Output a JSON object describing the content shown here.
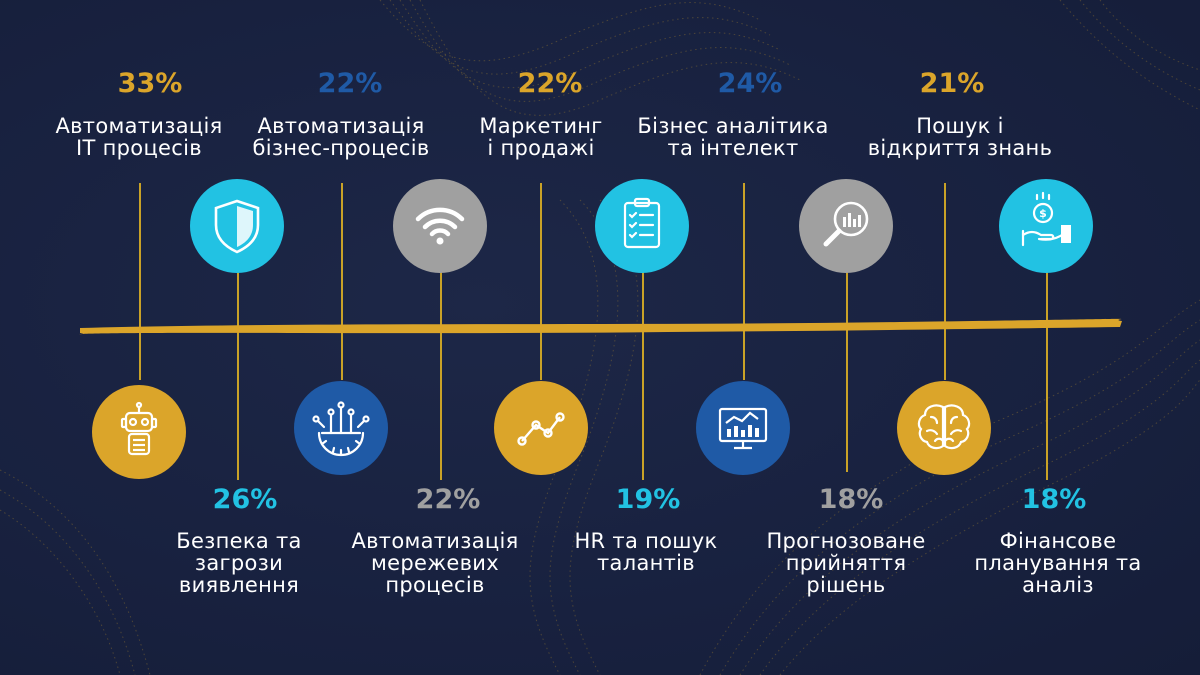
{
  "colors": {
    "background": "#18213f",
    "gold": "#dba52a",
    "line_gold": "#c9a227",
    "dark_blue": "#1f5aa6",
    "cyan": "#22c2e3",
    "gray": "#a0a0a0",
    "white": "#ffffff"
  },
  "top_items": [
    {
      "percent": "33%",
      "label_lines": [
        "Автоматизація",
        "IT процесів"
      ],
      "percent_color": "#dba52a",
      "icon": "robot-icon",
      "icon_color": "#dba52a"
    },
    {
      "percent": "22%",
      "label_lines": [
        "Автоматизація",
        "бізнес-процесів"
      ],
      "percent_color": "#1f5aa6",
      "icon": "gear-circuit-icon",
      "icon_color": "#1f5aa6"
    },
    {
      "percent": "22%",
      "label_lines": [
        "Маркетинг",
        "і продажі"
      ],
      "percent_color": "#dba52a",
      "icon": "line-chart-icon",
      "icon_color": "#dba52a"
    },
    {
      "percent": "24%",
      "label_lines": [
        "Бізнес аналітика",
        "та інтелект"
      ],
      "percent_color": "#1f5aa6",
      "icon": "dashboard-monitor-icon",
      "icon_color": "#1f5aa6"
    },
    {
      "percent": "21%",
      "label_lines": [
        "Пошук і",
        "відкриття знань"
      ],
      "percent_color": "#dba52a",
      "icon": "brain-icon",
      "icon_color": "#dba52a"
    }
  ],
  "bottom_items": [
    {
      "percent": "26%",
      "label_lines": [
        "Безпека та",
        "загрози",
        "виявлення"
      ],
      "percent_color": "#22c2e3",
      "icon": "shield-icon",
      "icon_color": "#22c2e3"
    },
    {
      "percent": "22%",
      "label_lines": [
        "Автоматизація",
        "мережевих",
        "процесів"
      ],
      "percent_color": "#a0a0a0",
      "icon": "wifi-icon",
      "icon_color": "#a0a0a0"
    },
    {
      "percent": "19%",
      "label_lines": [
        "HR та пошук",
        "талантів"
      ],
      "percent_color": "#22c2e3",
      "icon": "checklist-clipboard-icon",
      "icon_color": "#22c2e3"
    },
    {
      "percent": "18%",
      "label_lines": [
        "Прогнозоване",
        "прийняття",
        "рішень"
      ],
      "percent_color": "#a0a0a0",
      "icon": "magnifier-chart-icon",
      "icon_color": "#a0a0a0"
    },
    {
      "percent": "18%",
      "label_lines": [
        "Фінансове",
        "планування та",
        "аналіз"
      ],
      "percent_color": "#22c2e3",
      "icon": "money-hand-icon",
      "icon_color": "#22c2e3"
    }
  ]
}
